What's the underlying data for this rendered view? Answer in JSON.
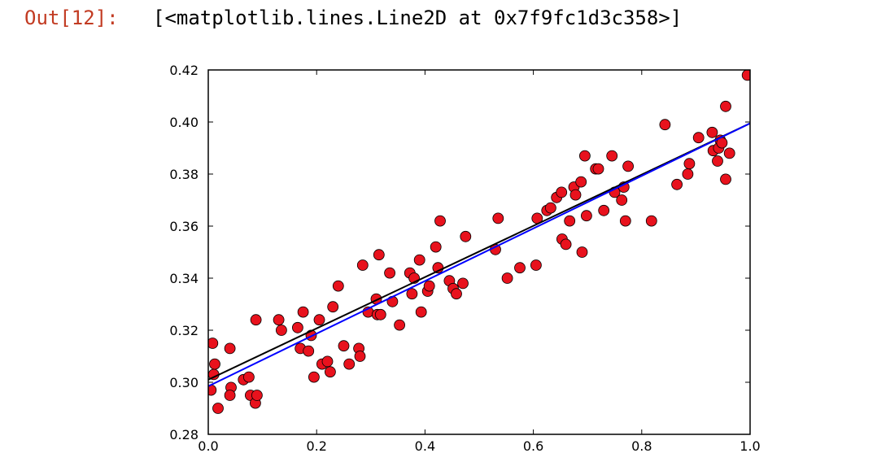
{
  "cell": {
    "prompt": "Out[12]:",
    "output_text": "[<matplotlib.lines.Line2D at 0x7f9fc1d3c358>]"
  },
  "chart_data": {
    "type": "scatter",
    "xlim": [
      0.0,
      1.0
    ],
    "ylim": [
      0.28,
      0.42
    ],
    "xticks": [
      0.0,
      0.2,
      0.4,
      0.6,
      0.8,
      1.0
    ],
    "xtick_labels": [
      "0.0",
      "0.2",
      "0.4",
      "0.6",
      "0.8",
      "1.0"
    ],
    "yticks": [
      0.28,
      0.3,
      0.32,
      0.34,
      0.36,
      0.38,
      0.4,
      0.42
    ],
    "ytick_labels": [
      "0.28",
      "0.30",
      "0.32",
      "0.34",
      "0.36",
      "0.38",
      "0.40",
      "0.42"
    ],
    "grid": false,
    "colors": {
      "points": "#e8121d",
      "point_edge": "#000000",
      "fit_black": "#000000",
      "fit_blue": "#0000ff"
    },
    "points": [
      [
        0.005,
        0.297
      ],
      [
        0.008,
        0.315
      ],
      [
        0.01,
        0.303
      ],
      [
        0.012,
        0.307
      ],
      [
        0.018,
        0.29
      ],
      [
        0.04,
        0.313
      ],
      [
        0.042,
        0.298
      ],
      [
        0.04,
        0.295
      ],
      [
        0.065,
        0.301
      ],
      [
        0.075,
        0.302
      ],
      [
        0.078,
        0.295
      ],
      [
        0.087,
        0.292
      ],
      [
        0.09,
        0.295
      ],
      [
        0.088,
        0.324
      ],
      [
        0.13,
        0.324
      ],
      [
        0.135,
        0.32
      ],
      [
        0.165,
        0.321
      ],
      [
        0.17,
        0.313
      ],
      [
        0.175,
        0.327
      ],
      [
        0.185,
        0.312
      ],
      [
        0.19,
        0.318
      ],
      [
        0.195,
        0.302
      ],
      [
        0.205,
        0.324
      ],
      [
        0.21,
        0.307
      ],
      [
        0.22,
        0.308
      ],
      [
        0.225,
        0.304
      ],
      [
        0.23,
        0.329
      ],
      [
        0.24,
        0.337
      ],
      [
        0.25,
        0.314
      ],
      [
        0.26,
        0.307
      ],
      [
        0.278,
        0.313
      ],
      [
        0.28,
        0.31
      ],
      [
        0.285,
        0.345
      ],
      [
        0.295,
        0.327
      ],
      [
        0.31,
        0.332
      ],
      [
        0.312,
        0.326
      ],
      [
        0.318,
        0.326
      ],
      [
        0.315,
        0.349
      ],
      [
        0.335,
        0.342
      ],
      [
        0.34,
        0.331
      ],
      [
        0.353,
        0.322
      ],
      [
        0.372,
        0.342
      ],
      [
        0.376,
        0.334
      ],
      [
        0.38,
        0.34
      ],
      [
        0.39,
        0.347
      ],
      [
        0.393,
        0.327
      ],
      [
        0.405,
        0.335
      ],
      [
        0.408,
        0.337
      ],
      [
        0.42,
        0.352
      ],
      [
        0.424,
        0.344
      ],
      [
        0.428,
        0.362
      ],
      [
        0.445,
        0.339
      ],
      [
        0.452,
        0.336
      ],
      [
        0.458,
        0.334
      ],
      [
        0.47,
        0.338
      ],
      [
        0.475,
        0.356
      ],
      [
        0.53,
        0.351
      ],
      [
        0.535,
        0.363
      ],
      [
        0.552,
        0.34
      ],
      [
        0.575,
        0.344
      ],
      [
        0.605,
        0.345
      ],
      [
        0.607,
        0.363
      ],
      [
        0.625,
        0.366
      ],
      [
        0.632,
        0.367
      ],
      [
        0.643,
        0.371
      ],
      [
        0.652,
        0.373
      ],
      [
        0.653,
        0.355
      ],
      [
        0.66,
        0.353
      ],
      [
        0.667,
        0.362
      ],
      [
        0.675,
        0.375
      ],
      [
        0.678,
        0.372
      ],
      [
        0.688,
        0.377
      ],
      [
        0.69,
        0.35
      ],
      [
        0.695,
        0.387
      ],
      [
        0.698,
        0.364
      ],
      [
        0.715,
        0.382
      ],
      [
        0.72,
        0.382
      ],
      [
        0.73,
        0.366
      ],
      [
        0.745,
        0.387
      ],
      [
        0.75,
        0.373
      ],
      [
        0.763,
        0.37
      ],
      [
        0.767,
        0.375
      ],
      [
        0.77,
        0.362
      ],
      [
        0.775,
        0.383
      ],
      [
        0.818,
        0.362
      ],
      [
        0.843,
        0.399
      ],
      [
        0.865,
        0.376
      ],
      [
        0.885,
        0.38
      ],
      [
        0.888,
        0.384
      ],
      [
        0.905,
        0.394
      ],
      [
        0.93,
        0.396
      ],
      [
        0.932,
        0.389
      ],
      [
        0.94,
        0.385
      ],
      [
        0.942,
        0.39
      ],
      [
        0.945,
        0.393
      ],
      [
        0.948,
        0.392
      ],
      [
        0.955,
        0.406
      ],
      [
        0.955,
        0.378
      ],
      [
        0.962,
        0.388
      ],
      [
        0.995,
        0.418
      ]
    ],
    "lines": [
      {
        "color": "#000000",
        "x": [
          0.0,
          1.0
        ],
        "y": [
          0.301,
          0.3995
        ]
      },
      {
        "color": "#0000ff",
        "x": [
          0.0,
          1.0
        ],
        "y": [
          0.2985,
          0.3995
        ]
      }
    ]
  }
}
